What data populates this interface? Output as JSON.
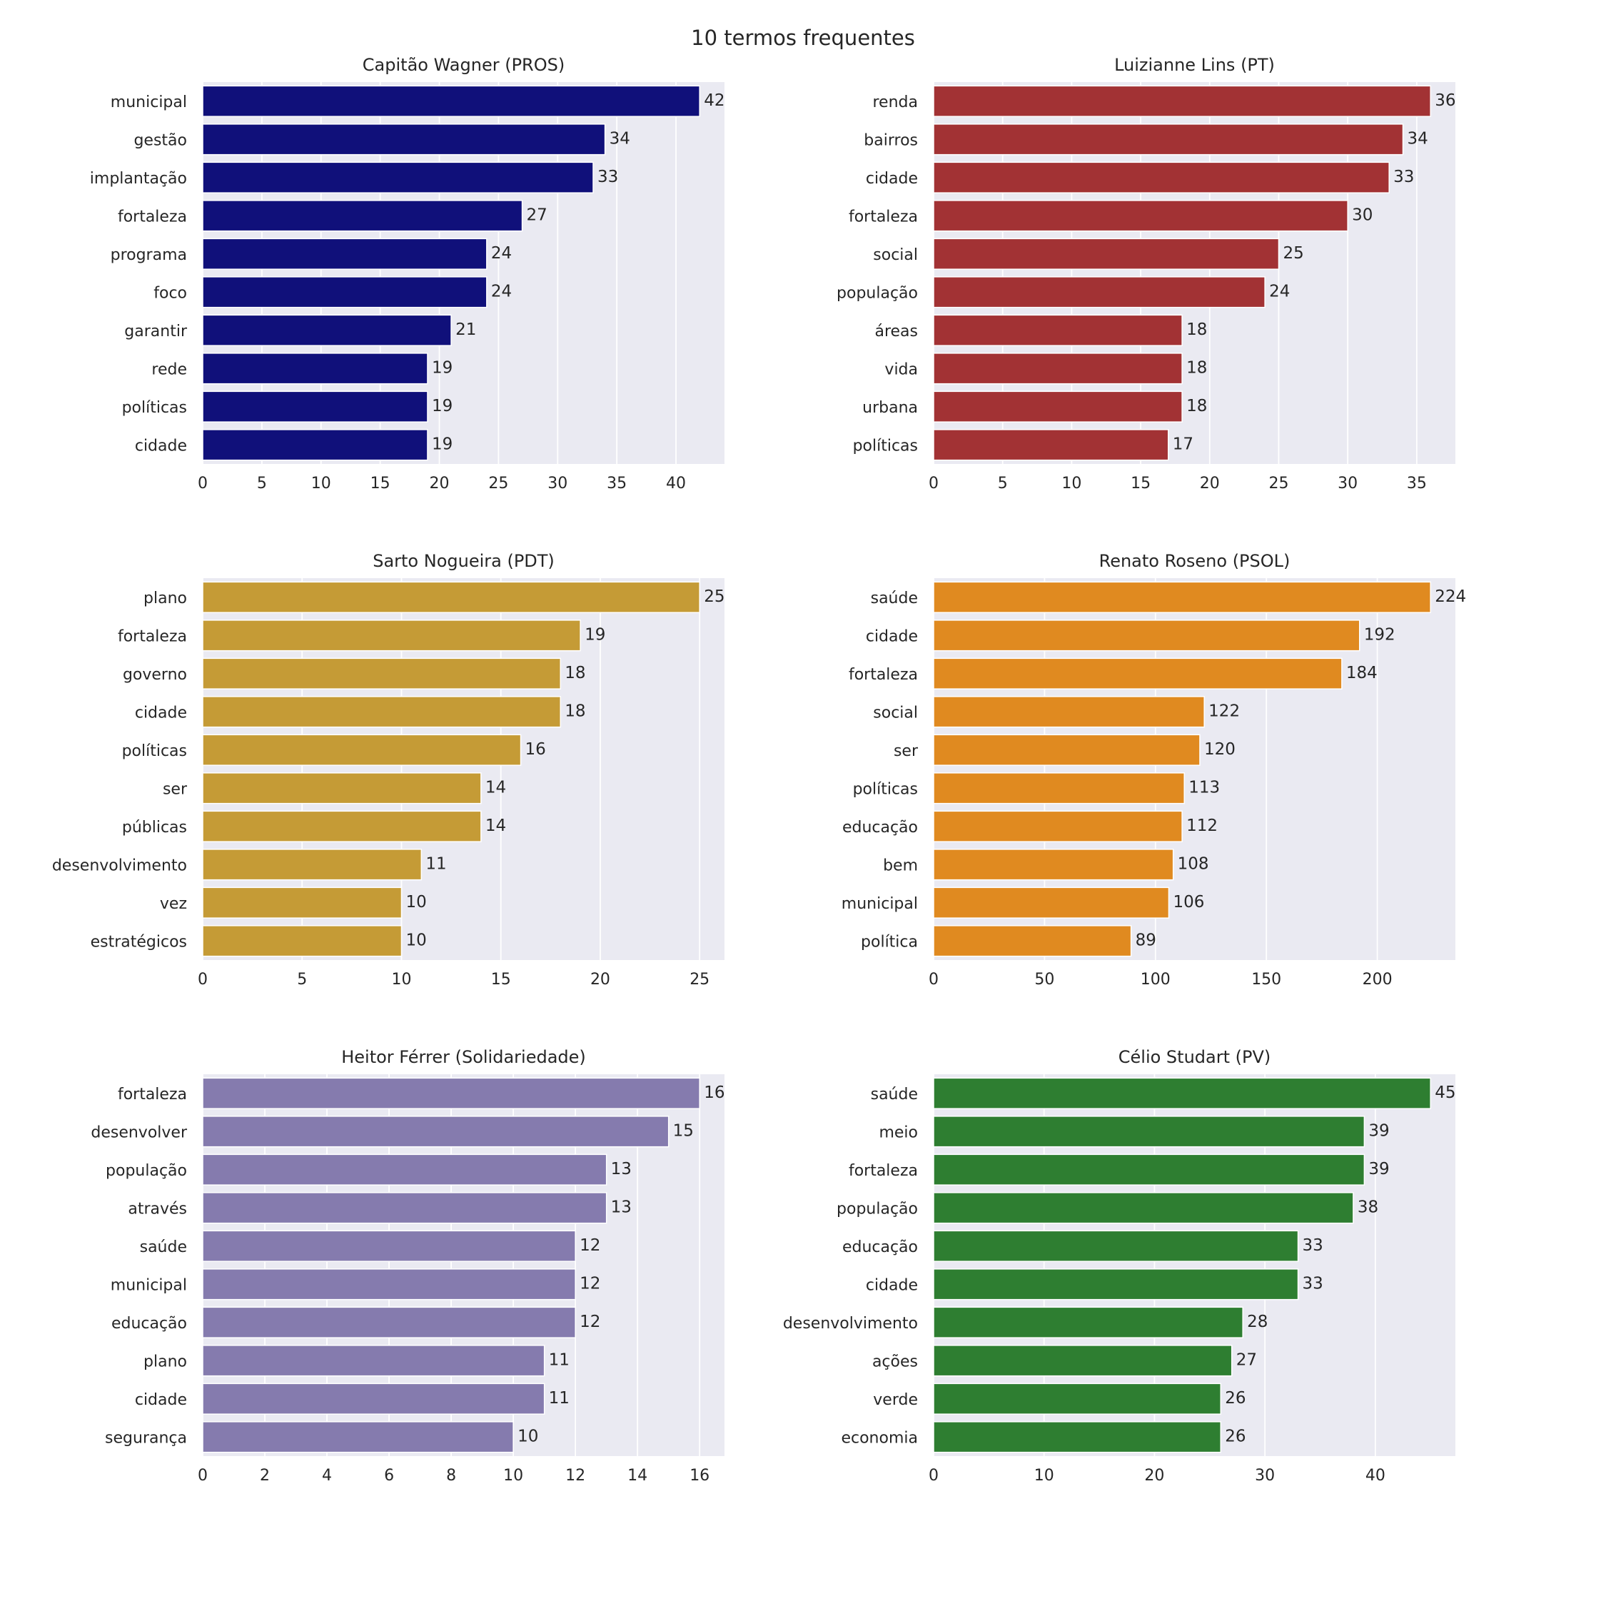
{
  "suptitle": "10 termos frequentes",
  "chart_data": [
    {
      "type": "bar",
      "orientation": "horizontal",
      "title": "Capitão Wagner (PROS)",
      "color": "#10107a",
      "categories": [
        "municipal",
        "gestão",
        "implantação",
        "fortaleza",
        "programa",
        "foco",
        "garantir",
        "rede",
        "políticas",
        "cidade"
      ],
      "values": [
        42,
        34,
        33,
        27,
        24,
        24,
        21,
        19,
        19,
        19
      ],
      "xticks": [
        0,
        5,
        10,
        15,
        20,
        25,
        30,
        35,
        40
      ],
      "xlim": [
        0,
        44.1
      ]
    },
    {
      "type": "bar",
      "orientation": "horizontal",
      "title": "Luizianne Lins (PT)",
      "color": "#a23234",
      "categories": [
        "renda",
        "bairros",
        "cidade",
        "fortaleza",
        "social",
        "população",
        "áreas",
        "vida",
        "urbana",
        "políticas"
      ],
      "values": [
        36,
        34,
        33,
        30,
        25,
        24,
        18,
        18,
        18,
        17
      ],
      "xticks": [
        0,
        5,
        10,
        15,
        20,
        25,
        30,
        35
      ],
      "xlim": [
        0,
        37.8
      ]
    },
    {
      "type": "bar",
      "orientation": "horizontal",
      "title": "Sarto Nogueira (PDT)",
      "color": "#c59b36",
      "categories": [
        "plano",
        "fortaleza",
        "governo",
        "cidade",
        "políticas",
        "ser",
        "públicas",
        "desenvolvimento",
        "vez",
        "estratégicos"
      ],
      "values": [
        25,
        19,
        18,
        18,
        16,
        14,
        14,
        11,
        10,
        10
      ],
      "xticks": [
        0,
        5,
        10,
        15,
        20,
        25
      ],
      "xlim": [
        0,
        26.25
      ]
    },
    {
      "type": "bar",
      "orientation": "horizontal",
      "title": "Renato Roseno (PSOL)",
      "color": "#e08a20",
      "categories": [
        "saúde",
        "cidade",
        "fortaleza",
        "social",
        "ser",
        "políticas",
        "educação",
        "bem",
        "municipal",
        "política"
      ],
      "values": [
        224,
        192,
        184,
        122,
        120,
        113,
        112,
        108,
        106,
        89
      ],
      "xticks": [
        0,
        50,
        100,
        150,
        200
      ],
      "xlim": [
        0,
        235.2
      ]
    },
    {
      "type": "bar",
      "orientation": "horizontal",
      "title": "Heitor Férrer (Solidariedade)",
      "color": "#857bae",
      "categories": [
        "fortaleza",
        "desenvolver",
        "população",
        "através",
        "saúde",
        "municipal",
        "educação",
        "plano",
        "cidade",
        "segurança"
      ],
      "values": [
        16,
        15,
        13,
        13,
        12,
        12,
        12,
        11,
        11,
        10
      ],
      "xticks": [
        0,
        2,
        4,
        6,
        8,
        10,
        12,
        14,
        16
      ],
      "xlim": [
        0,
        16.8
      ]
    },
    {
      "type": "bar",
      "orientation": "horizontal",
      "title": "Célio Studart (PV)",
      "color": "#2e7e31",
      "categories": [
        "saúde",
        "meio",
        "fortaleza",
        "população",
        "educação",
        "cidade",
        "desenvolvimento",
        "ações",
        "verde",
        "economia"
      ],
      "values": [
        45,
        39,
        39,
        38,
        33,
        33,
        28,
        27,
        26,
        26
      ],
      "xticks": [
        0,
        10,
        20,
        30,
        40
      ],
      "xlim": [
        0,
        47.25
      ]
    }
  ]
}
